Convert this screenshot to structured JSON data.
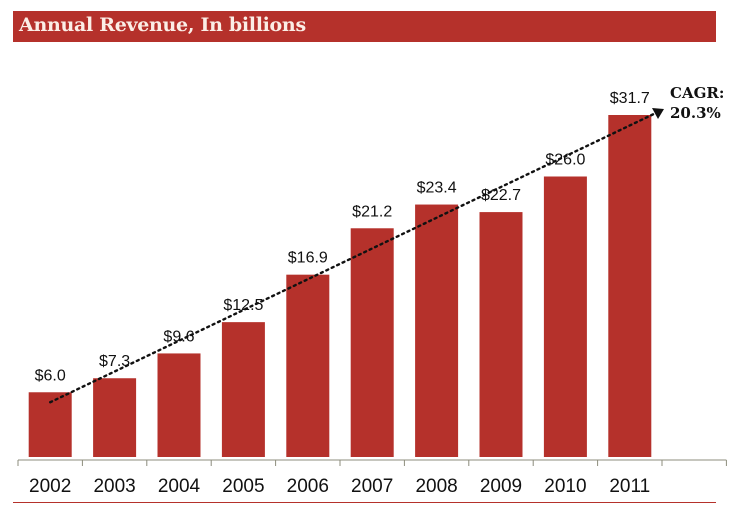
{
  "title": "Annual Revenue, In billions",
  "colors": {
    "bar": "#b5312b",
    "title_bg": "#b5312b",
    "title_text": "#fbeee6",
    "axis": "#8c8c7c"
  },
  "annotation": {
    "line1": "CAGR:",
    "line2": "20.3%"
  },
  "chart_data": {
    "type": "bar",
    "title": "Annual Revenue, In billions",
    "xlabel": "",
    "ylabel": "",
    "categories": [
      "2002",
      "2003",
      "2004",
      "2005",
      "2006",
      "2007",
      "2008",
      "2009",
      "2010",
      "2011"
    ],
    "values": [
      6.0,
      7.3,
      9.6,
      12.5,
      16.9,
      21.2,
      23.4,
      22.7,
      26.0,
      31.7
    ],
    "data_labels": [
      "$6.0",
      "$7.3",
      "$9.6",
      "$12.5",
      "$16.9",
      "$21.2",
      "$23.4",
      "$22.7",
      "$26.0",
      "$31.7"
    ],
    "ylim": [
      0,
      35
    ],
    "grid": false,
    "legend": "none",
    "trend_line": {
      "style": "dotted-arrow",
      "from": "2002",
      "to": "2011",
      "label": "CAGR: 20.3%"
    }
  }
}
